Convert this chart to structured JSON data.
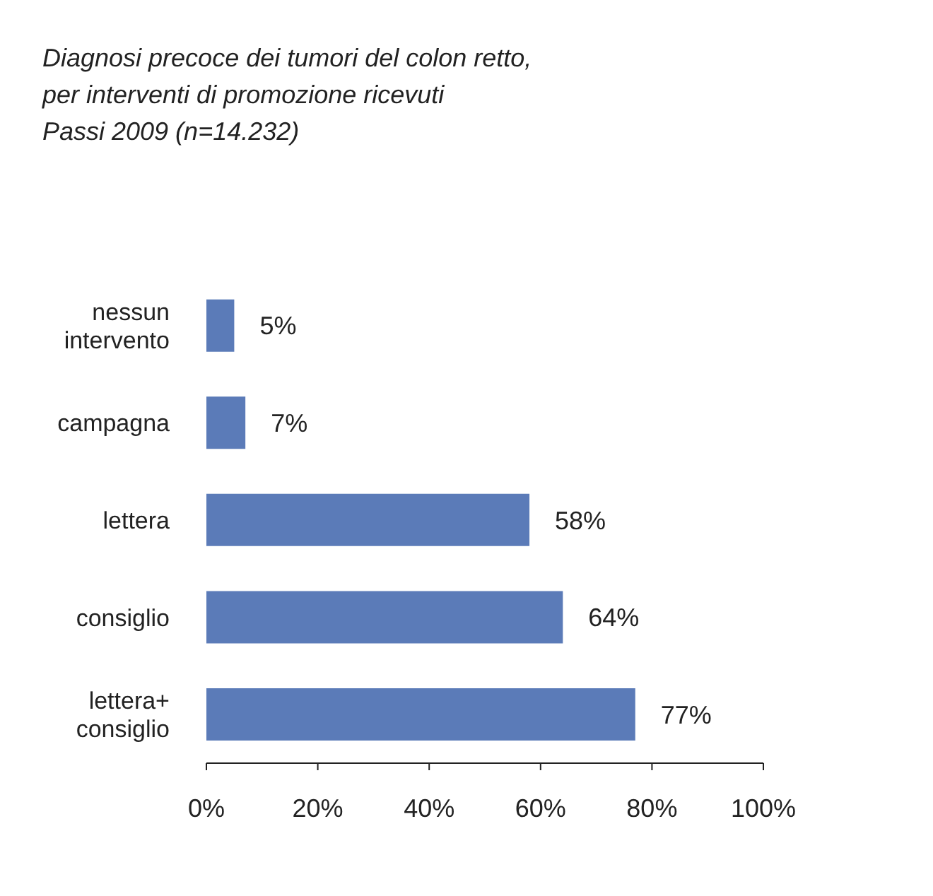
{
  "chart_data": {
    "type": "bar",
    "orientation": "horizontal",
    "title": "Diagnosi precoce dei tumori del colon retto,\nper interventi di promozione ricevuti",
    "subtitle": "Passi 2009 (n=14.232)",
    "categories": [
      "nessun intervento",
      "campagna",
      "lettera",
      "consiglio",
      "lettera+ consiglio"
    ],
    "values": [
      5,
      7,
      58,
      64,
      77
    ],
    "value_labels": [
      "5%",
      "7%",
      "58%",
      "64%",
      "77%"
    ],
    "color": "#5b7bb8",
    "xlim": [
      0,
      100
    ],
    "xticks": [
      {
        "value": 0,
        "label": "0%"
      },
      {
        "value": 20,
        "label": "20%"
      },
      {
        "value": 40,
        "label": "40%"
      },
      {
        "value": 60,
        "label": "60%"
      },
      {
        "value": 80,
        "label": "80%"
      },
      {
        "value": 100,
        "label": "100%"
      }
    ],
    "grid": false,
    "legend": false
  }
}
